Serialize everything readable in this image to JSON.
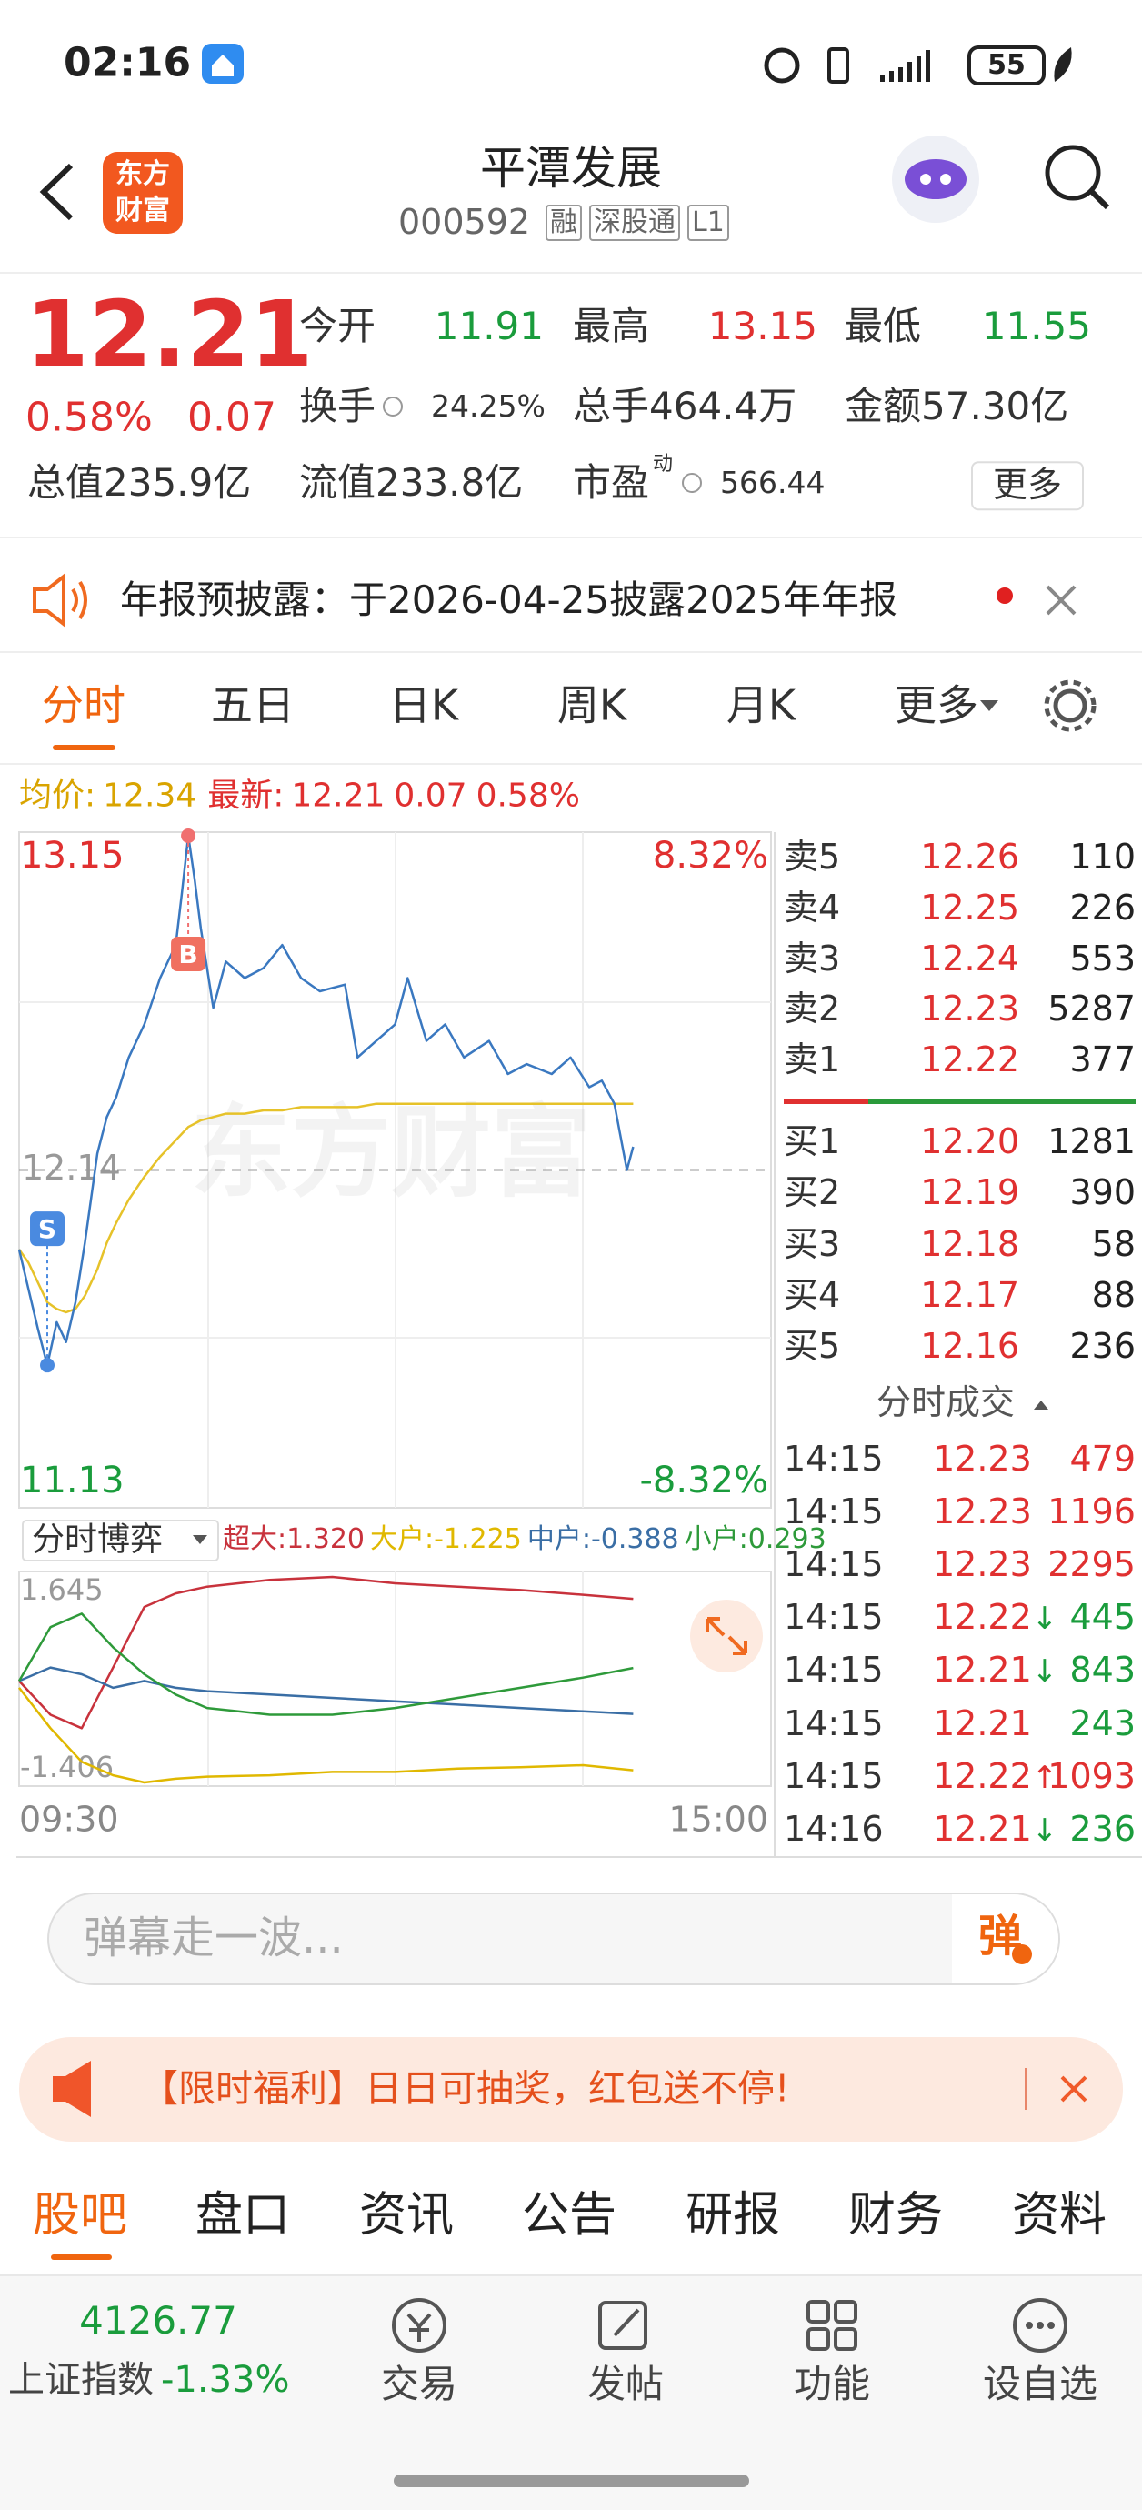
{
  "status_bar": {
    "time": "02:16",
    "battery": "55"
  },
  "header": {
    "logo": [
      "东方",
      "财富"
    ],
    "title": "平潭发展",
    "code": "000592",
    "tags": [
      "融",
      "深股通",
      "L1"
    ]
  },
  "quote": {
    "price": "12.21",
    "change_pct": "0.58%",
    "change": "0.07",
    "open": {
      "label": "今开",
      "value": "11.91"
    },
    "high": {
      "label": "最高",
      "value": "13.15"
    },
    "low": {
      "label": "最低",
      "value": "11.55"
    },
    "turnover": {
      "label": "换手",
      "value": "24.25%"
    },
    "volume": {
      "label": "总手",
      "value": "464.4万"
    },
    "amount": {
      "label": "金额",
      "value": "57.30亿"
    },
    "market_cap": {
      "label": "总值",
      "value": "235.9亿"
    },
    "float_cap": {
      "label": "流值",
      "value": "233.8亿"
    },
    "pe": {
      "label": "市盈",
      "sup": "动",
      "value": "566.44"
    },
    "more": "更多"
  },
  "notice": {
    "text": "年报预披露：于2026-04-25披露2025年年报"
  },
  "tabs": [
    "分时",
    "五日",
    "日K",
    "周K",
    "月K",
    "更多"
  ],
  "intraday": {
    "avg_label": "均价:",
    "avg_price": "12.34",
    "latest_label": "最新:",
    "latest_price": "12.21",
    "latest_change": "0.07",
    "latest_pct": "0.58%",
    "ylim": [
      11.13,
      13.15
    ],
    "prev_close": 12.14,
    "up_pct": "8.32%",
    "down_pct": "-8.32%",
    "watermark": "东方财富",
    "buy_marker": "B",
    "sell_marker": "S",
    "time_start": "09:30",
    "time_end": "15:00",
    "price_color": "#3a78c0",
    "avg_color": "#e6c229",
    "minutes": [
      0,
      3,
      6,
      9,
      12,
      15,
      18,
      21,
      25,
      28,
      31,
      35,
      40,
      45,
      50,
      52,
      54,
      56,
      58,
      62,
      66,
      72,
      78,
      84,
      90,
      96,
      104,
      108,
      114,
      120,
      124,
      130,
      136,
      142,
      150,
      156,
      162,
      170,
      176,
      182,
      186,
      190,
      194,
      196
    ],
    "price": [
      11.9,
      11.78,
      11.66,
      11.55,
      11.68,
      11.62,
      11.74,
      11.92,
      12.19,
      12.3,
      12.36,
      12.48,
      12.58,
      12.72,
      12.82,
      12.98,
      13.15,
      13.02,
      12.87,
      12.63,
      12.77,
      12.72,
      12.75,
      12.82,
      12.72,
      12.68,
      12.7,
      12.48,
      12.53,
      12.58,
      12.72,
      12.53,
      12.58,
      12.48,
      12.53,
      12.43,
      12.46,
      12.43,
      12.48,
      12.39,
      12.41,
      12.34,
      12.14,
      12.21
    ],
    "avg": [
      11.9,
      11.86,
      11.8,
      11.74,
      11.72,
      11.71,
      11.72,
      11.76,
      11.84,
      11.92,
      11.98,
      12.05,
      12.12,
      12.18,
      12.23,
      12.25,
      12.27,
      12.28,
      12.29,
      12.3,
      12.31,
      12.31,
      12.32,
      12.32,
      12.33,
      12.33,
      12.33,
      12.33,
      12.34,
      12.34,
      12.34,
      12.34,
      12.34,
      12.34,
      12.34,
      12.34,
      12.34,
      12.34,
      12.34,
      12.34,
      12.34,
      12.34,
      12.34,
      12.34
    ]
  },
  "flow": {
    "title": "分时博弈",
    "ylim": [
      -1.406,
      1.645
    ],
    "minutes": [
      0,
      10,
      20,
      30,
      40,
      50,
      60,
      80,
      100,
      120,
      140,
      160,
      180,
      196
    ],
    "series": [
      {
        "name": "超大:",
        "label": "1.320",
        "color": "#c8323c",
        "values": [
          0.1,
          -0.4,
          -0.6,
          0.3,
          1.2,
          1.4,
          1.5,
          1.6,
          1.645,
          1.55,
          1.5,
          1.45,
          1.38,
          1.32
        ]
      },
      {
        "name": "大户:",
        "label": "-1.225",
        "color": "#e0b800",
        "values": [
          0.0,
          -0.6,
          -1.1,
          -1.3,
          -1.406,
          -1.35,
          -1.32,
          -1.3,
          -1.25,
          -1.25,
          -1.2,
          -1.18,
          -1.15,
          -1.225
        ]
      },
      {
        "name": "中户:",
        "label": "-0.388",
        "color": "#3a6ea5",
        "values": [
          0.1,
          0.3,
          0.2,
          0.0,
          0.1,
          0.0,
          -0.05,
          -0.1,
          -0.15,
          -0.2,
          -0.25,
          -0.3,
          -0.35,
          -0.388
        ]
      },
      {
        "name": "小户:",
        "label": "0.293",
        "color": "#2e9a3a",
        "values": [
          0.1,
          0.9,
          1.1,
          0.6,
          0.2,
          -0.1,
          -0.3,
          -0.4,
          -0.4,
          -0.3,
          -0.15,
          0.0,
          0.15,
          0.293
        ]
      }
    ]
  },
  "order_book": {
    "asks": [
      {
        "label": "卖5",
        "price": "12.26",
        "volume": "110"
      },
      {
        "label": "卖4",
        "price": "12.25",
        "volume": "226"
      },
      {
        "label": "卖3",
        "price": "12.24",
        "volume": "553"
      },
      {
        "label": "卖2",
        "price": "12.23",
        "volume": "5287"
      },
      {
        "label": "卖1",
        "price": "12.22",
        "volume": "377"
      }
    ],
    "bids": [
      {
        "label": "买1",
        "price": "12.20",
        "volume": "1281"
      },
      {
        "label": "买2",
        "price": "12.19",
        "volume": "390"
      },
      {
        "label": "买3",
        "price": "12.18",
        "volume": "58"
      },
      {
        "label": "买4",
        "price": "12.17",
        "volume": "88"
      },
      {
        "label": "买5",
        "price": "12.16",
        "volume": "236"
      }
    ]
  },
  "trades": {
    "title": "分时成交",
    "rows": [
      {
        "time": "14:15",
        "price": "12.23",
        "volume": "479",
        "color": "#e03030"
      },
      {
        "time": "14:15",
        "price": "12.23",
        "volume": "1196",
        "color": "#e03030"
      },
      {
        "time": "14:15",
        "price": "12.23",
        "volume": "2295",
        "color": "#e03030"
      },
      {
        "time": "14:15",
        "price": "12.22",
        "arrow": "↓",
        "volume": "445",
        "color": "#1a9c3c"
      },
      {
        "time": "14:15",
        "price": "12.21",
        "arrow": "↓",
        "volume": "843",
        "color": "#1a9c3c"
      },
      {
        "time": "14:15",
        "price": "12.21",
        "volume": "243",
        "color": "#1a9c3c"
      },
      {
        "time": "14:15",
        "price": "12.22",
        "arrow": "↑",
        "volume": "1093",
        "color": "#e03030"
      },
      {
        "time": "14:16",
        "price": "12.21",
        "arrow": "↓",
        "volume": "236",
        "color": "#1a9c3c"
      }
    ]
  },
  "danmu": {
    "placeholder": "弹幕走一波...",
    "button": "弹"
  },
  "promo": {
    "text": "【限时福利】日日可抽奖，红包送不停!"
  },
  "sub_tabs": [
    "股吧",
    "盘口",
    "资讯",
    "公告",
    "研报",
    "财务",
    "资料"
  ],
  "bottom_nav": {
    "index_value": "4126.77",
    "index_name": "上证指数",
    "index_change": "-1.33%",
    "items": [
      "交易",
      "发帖",
      "功能",
      "设自选"
    ]
  }
}
